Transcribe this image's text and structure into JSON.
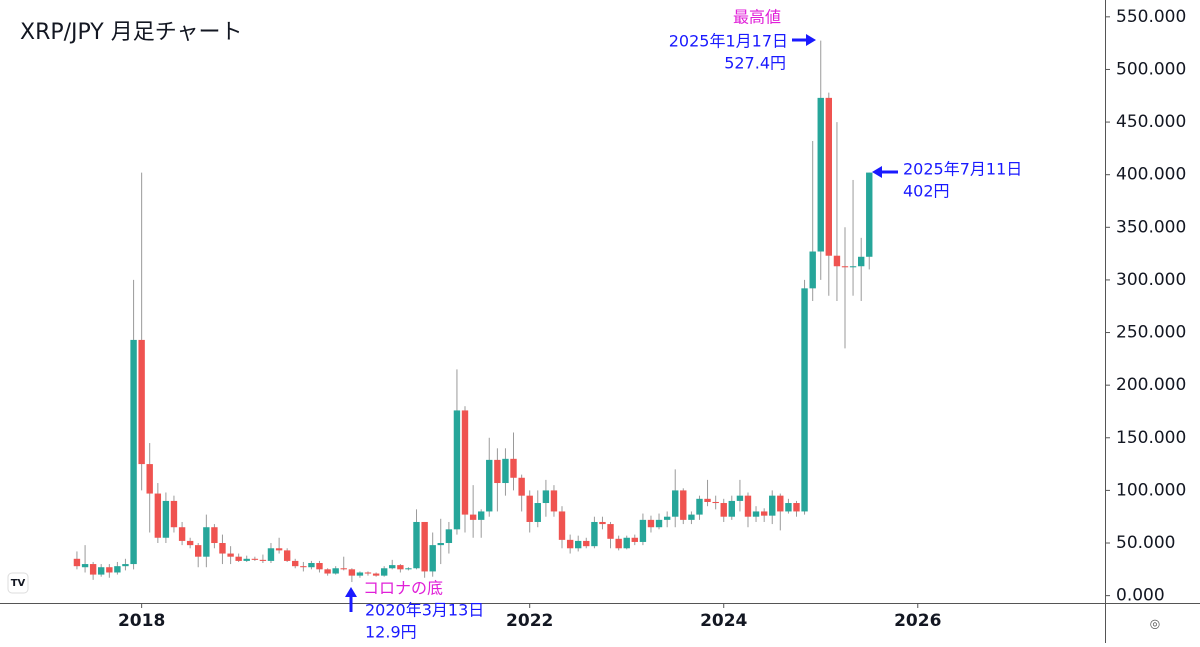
{
  "chart_data": {
    "type": "candlestick",
    "title": "XRP/JPY 月足チャート",
    "up_color": "#26a69a",
    "down_color": "#ef5350",
    "wick_color": "#9a9a9a",
    "xlim": [
      2016.54,
      2027.93
    ],
    "xticks": [
      2018,
      2022,
      2024,
      2026
    ],
    "ylim": [
      -7,
      566
    ],
    "yticks": [
      {
        "value": 0,
        "label": "0.000"
      },
      {
        "value": 50,
        "label": "50.000"
      },
      {
        "value": 100,
        "label": "100.000"
      },
      {
        "value": 150,
        "label": "150.000"
      },
      {
        "value": 200,
        "label": "200.000"
      },
      {
        "value": 250,
        "label": "250.000"
      },
      {
        "value": 300,
        "label": "300.000"
      },
      {
        "value": 350,
        "label": "350.000"
      },
      {
        "value": 400,
        "label": "400.000"
      },
      {
        "value": 450,
        "label": "450.000"
      },
      {
        "value": 500,
        "label": "500.000"
      },
      {
        "value": 550,
        "label": "550.000"
      }
    ],
    "x": [
      2017.333,
      2017.417,
      2017.5,
      2017.583,
      2017.667,
      2017.75,
      2017.833,
      2017.917,
      2018.0,
      2018.083,
      2018.167,
      2018.25,
      2018.333,
      2018.417,
      2018.5,
      2018.583,
      2018.667,
      2018.75,
      2018.833,
      2018.917,
      2019.0,
      2019.083,
      2019.167,
      2019.25,
      2019.333,
      2019.417,
      2019.5,
      2019.583,
      2019.667,
      2019.75,
      2019.833,
      2019.917,
      2020.0,
      2020.083,
      2020.167,
      2020.25,
      2020.333,
      2020.417,
      2020.5,
      2020.583,
      2020.667,
      2020.75,
      2020.833,
      2020.917,
      2021.0,
      2021.083,
      2021.167,
      2021.25,
      2021.333,
      2021.417,
      2021.5,
      2021.583,
      2021.667,
      2021.75,
      2021.833,
      2021.917,
      2022.0,
      2022.083,
      2022.167,
      2022.25,
      2022.333,
      2022.417,
      2022.5,
      2022.583,
      2022.667,
      2022.75,
      2022.833,
      2022.917,
      2023.0,
      2023.083,
      2023.167,
      2023.25,
      2023.333,
      2023.417,
      2023.5,
      2023.583,
      2023.667,
      2023.75,
      2023.833,
      2023.917,
      2024.0,
      2024.083,
      2024.167,
      2024.25,
      2024.333,
      2024.417,
      2024.5,
      2024.583,
      2024.667,
      2024.75,
      2024.833,
      2024.917,
      2025.0,
      2025.083,
      2025.167,
      2025.25,
      2025.333,
      2025.417,
      2025.5
    ],
    "open": [
      35,
      27,
      30,
      20,
      27,
      22,
      28,
      30,
      243,
      125,
      97,
      55,
      90,
      65,
      52,
      48,
      37,
      65,
      50,
      40,
      37,
      33,
      35,
      34,
      33,
      45,
      43,
      33,
      28,
      27,
      31,
      25,
      21,
      26,
      25,
      19,
      22,
      21,
      19,
      26,
      29,
      25,
      26,
      70,
      23,
      48,
      50,
      63,
      176,
      77,
      72,
      80,
      129,
      107,
      130,
      112,
      95,
      70,
      88,
      100,
      80,
      53,
      45,
      52,
      47,
      70,
      68,
      54,
      45,
      55,
      51,
      72,
      65,
      72,
      75,
      100,
      72,
      77,
      92,
      89,
      88,
      75,
      90,
      95,
      75,
      80,
      76,
      95,
      80,
      88,
      80,
      292,
      327,
      473,
      323,
      313,
      312,
      313,
      322
    ],
    "high": [
      42,
      48,
      32,
      30,
      30,
      32,
      35,
      300,
      402,
      145,
      107,
      98,
      95,
      70,
      55,
      50,
      77,
      68,
      58,
      47,
      40,
      38,
      37,
      39,
      50,
      55,
      45,
      35,
      32,
      33,
      33,
      26,
      28,
      37,
      26,
      23,
      23,
      22,
      28,
      34,
      30,
      27,
      82,
      70,
      60,
      73,
      70,
      215,
      180,
      105,
      82,
      150,
      140,
      140,
      155,
      115,
      100,
      100,
      110,
      105,
      85,
      58,
      57,
      55,
      75,
      75,
      70,
      57,
      57,
      58,
      78,
      76,
      78,
      80,
      120,
      102,
      80,
      95,
      110,
      95,
      92,
      95,
      110,
      98,
      85,
      83,
      100,
      97,
      92,
      90,
      300,
      432,
      527.4,
      478,
      450,
      350,
      395,
      340,
      402
    ],
    "low": [
      25,
      22,
      15,
      18,
      17,
      20,
      24,
      25,
      100,
      60,
      50,
      50,
      60,
      48,
      45,
      27,
      27,
      45,
      30,
      30,
      32,
      32,
      33,
      31,
      31,
      40,
      32,
      26,
      23,
      25,
      22,
      19,
      20,
      24,
      12.9,
      17,
      19,
      18,
      18,
      25,
      22,
      24,
      25,
      17,
      18,
      30,
      40,
      58,
      60,
      55,
      55,
      75,
      80,
      95,
      100,
      80,
      60,
      65,
      75,
      75,
      45,
      40,
      42,
      45,
      45,
      63,
      45,
      43,
      44,
      48,
      48,
      60,
      63,
      65,
      65,
      68,
      68,
      72,
      85,
      82,
      70,
      72,
      80,
      65,
      70,
      70,
      68,
      62,
      78,
      75,
      77,
      280,
      300,
      285,
      280,
      235,
      285,
      280,
      310
    ],
    "close": [
      28,
      30,
      20,
      27,
      22,
      28,
      30,
      243,
      125,
      97,
      55,
      90,
      65,
      52,
      48,
      37,
      65,
      50,
      40,
      37,
      33,
      35,
      34,
      33,
      45,
      43,
      33,
      28,
      27,
      31,
      25,
      21,
      26,
      25,
      19,
      22,
      21,
      19,
      26,
      29,
      25,
      26,
      70,
      23,
      48,
      50,
      63,
      176,
      77,
      72,
      80,
      129,
      107,
      130,
      112,
      95,
      70,
      88,
      100,
      80,
      53,
      45,
      52,
      47,
      70,
      68,
      54,
      45,
      55,
      51,
      72,
      65,
      72,
      75,
      100,
      72,
      77,
      92,
      89,
      88,
      75,
      90,
      95,
      75,
      80,
      76,
      95,
      80,
      88,
      80,
      292,
      327,
      473,
      323,
      313,
      312,
      313,
      322,
      402
    ],
    "annotations": [
      {
        "lines": [
          "最高値",
          "2025年1月17日",
          "527.4円"
        ]
      },
      {
        "lines": [
          "2025年7月11日",
          "402円"
        ]
      },
      {
        "lines": [
          "コロナの底",
          "2020年3月13日",
          "12.9円"
        ]
      }
    ]
  }
}
